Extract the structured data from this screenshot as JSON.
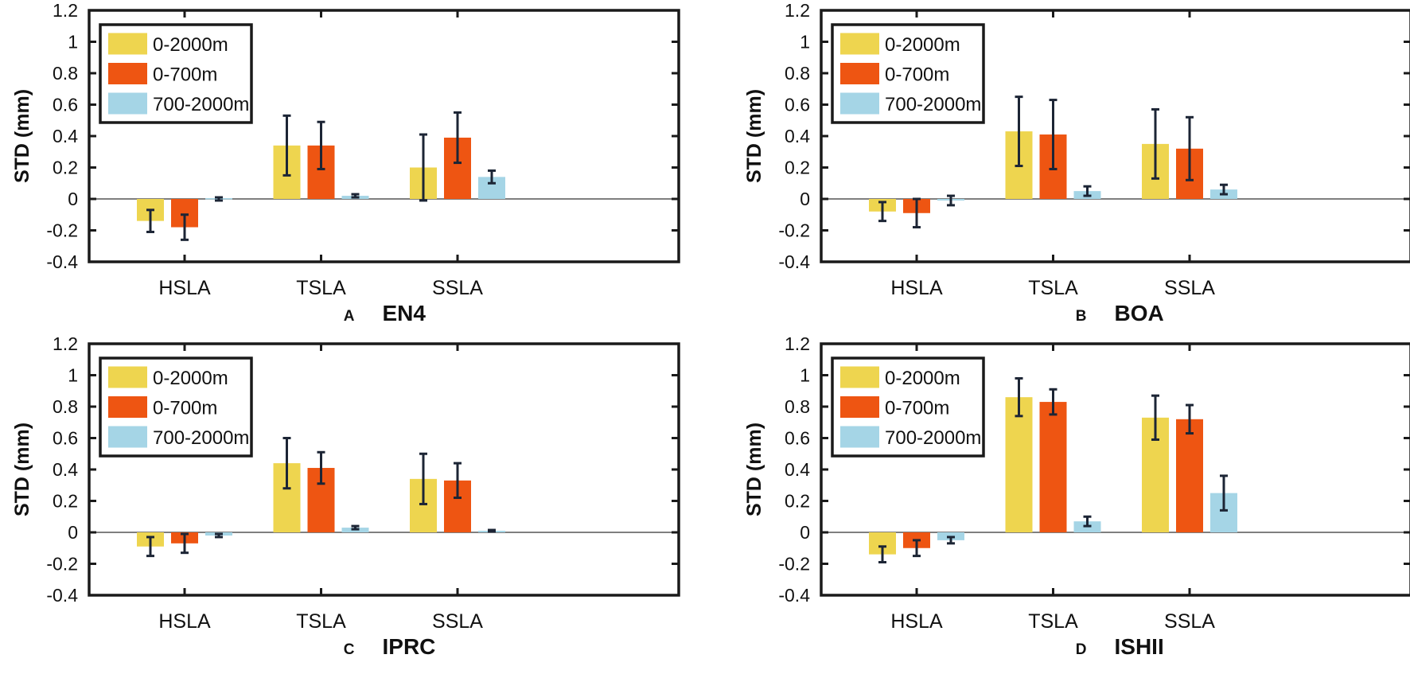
{
  "chart_data": [
    {
      "type": "bar",
      "panel_letter": "A",
      "title": "EN4",
      "ylabel": "STD (mm)",
      "xlabel": "",
      "ylim": [
        -0.4,
        1.2
      ],
      "yticks": [
        "-0.4",
        "-0.2",
        "0",
        "0.2",
        "0.4",
        "0.6",
        "0.8",
        "1",
        "1.2"
      ],
      "categories": [
        "HSLA",
        "TSLA",
        "SSLA"
      ],
      "legend_position": "top-left",
      "series": [
        {
          "name": "0-2000m",
          "color": "#EED54F",
          "values": [
            -0.14,
            0.34,
            0.2
          ],
          "err_low": [
            -0.21,
            0.15,
            -0.01
          ],
          "err_high": [
            -0.07,
            0.53,
            0.41
          ]
        },
        {
          "name": "0-700m",
          "color": "#EE5512",
          "values": [
            -0.18,
            0.34,
            0.39
          ],
          "err_low": [
            -0.26,
            0.19,
            0.23
          ],
          "err_high": [
            -0.1,
            0.49,
            0.55
          ]
        },
        {
          "name": "700-2000m",
          "color": "#A5D5E6",
          "values": [
            0.005,
            0.02,
            0.14
          ],
          "err_low": [
            -0.01,
            0.01,
            0.1
          ],
          "err_high": [
            0.01,
            0.03,
            0.18
          ]
        }
      ]
    },
    {
      "type": "bar",
      "panel_letter": "B",
      "title": "BOA",
      "ylabel": "STD (mm)",
      "xlabel": "",
      "ylim": [
        -0.4,
        1.2
      ],
      "yticks": [
        "-0.4",
        "-0.2",
        "0",
        "0.2",
        "0.4",
        "0.6",
        "0.8",
        "1",
        "1.2"
      ],
      "categories": [
        "HSLA",
        "TSLA",
        "SSLA"
      ],
      "legend_position": "top-left",
      "series": [
        {
          "name": "0-2000m",
          "color": "#EED54F",
          "values": [
            -0.08,
            0.43,
            0.35
          ],
          "err_low": [
            -0.14,
            0.21,
            0.13
          ],
          "err_high": [
            -0.02,
            0.65,
            0.57
          ]
        },
        {
          "name": "0-700m",
          "color": "#EE5512",
          "values": [
            -0.09,
            0.41,
            0.32
          ],
          "err_low": [
            -0.18,
            0.19,
            0.12
          ],
          "err_high": [
            0.0,
            0.63,
            0.52
          ]
        },
        {
          "name": "700-2000m",
          "color": "#A5D5E6",
          "values": [
            -0.01,
            0.05,
            0.06
          ],
          "err_low": [
            -0.04,
            0.02,
            0.03
          ],
          "err_high": [
            0.02,
            0.08,
            0.09
          ]
        }
      ]
    },
    {
      "type": "bar",
      "panel_letter": "C",
      "title": "IPRC",
      "ylabel": "STD (mm)",
      "xlabel": "",
      "ylim": [
        -0.4,
        1.2
      ],
      "yticks": [
        "-0.4",
        "-0.2",
        "0",
        "0.2",
        "0.4",
        "0.6",
        "0.8",
        "1",
        "1.2"
      ],
      "categories": [
        "HSLA",
        "TSLA",
        "SSLA"
      ],
      "legend_position": "top-left",
      "series": [
        {
          "name": "0-2000m",
          "color": "#EED54F",
          "values": [
            -0.09,
            0.44,
            0.34
          ],
          "err_low": [
            -0.15,
            0.28,
            0.18
          ],
          "err_high": [
            -0.03,
            0.6,
            0.5
          ]
        },
        {
          "name": "0-700m",
          "color": "#EE5512",
          "values": [
            -0.07,
            0.41,
            0.33
          ],
          "err_low": [
            -0.13,
            0.31,
            0.22
          ],
          "err_high": [
            -0.01,
            0.51,
            0.44
          ]
        },
        {
          "name": "700-2000m",
          "color": "#A5D5E6",
          "values": [
            -0.02,
            0.03,
            0.01
          ],
          "err_low": [
            -0.03,
            0.02,
            0.005
          ],
          "err_high": [
            -0.01,
            0.04,
            0.015
          ]
        }
      ]
    },
    {
      "type": "bar",
      "panel_letter": "D",
      "title": "ISHII",
      "ylabel": "STD (mm)",
      "xlabel": "",
      "ylim": [
        -0.4,
        1.2
      ],
      "yticks": [
        "-0.4",
        "-0.2",
        "0",
        "0.2",
        "0.4",
        "0.6",
        "0.8",
        "1",
        "1.2"
      ],
      "categories": [
        "HSLA",
        "TSLA",
        "SSLA"
      ],
      "legend_position": "top-left",
      "series": [
        {
          "name": "0-2000m",
          "color": "#EED54F",
          "values": [
            -0.14,
            0.86,
            0.73
          ],
          "err_low": [
            -0.19,
            0.74,
            0.59
          ],
          "err_high": [
            -0.09,
            0.98,
            0.87
          ]
        },
        {
          "name": "0-700m",
          "color": "#EE5512",
          "values": [
            -0.1,
            0.83,
            0.72
          ],
          "err_low": [
            -0.15,
            0.75,
            0.63
          ],
          "err_high": [
            -0.05,
            0.91,
            0.81
          ]
        },
        {
          "name": "700-2000m",
          "color": "#A5D5E6",
          "values": [
            -0.05,
            0.07,
            0.25
          ],
          "err_low": [
            -0.07,
            0.04,
            0.14
          ],
          "err_high": [
            -0.03,
            0.1,
            0.36
          ]
        }
      ]
    }
  ]
}
